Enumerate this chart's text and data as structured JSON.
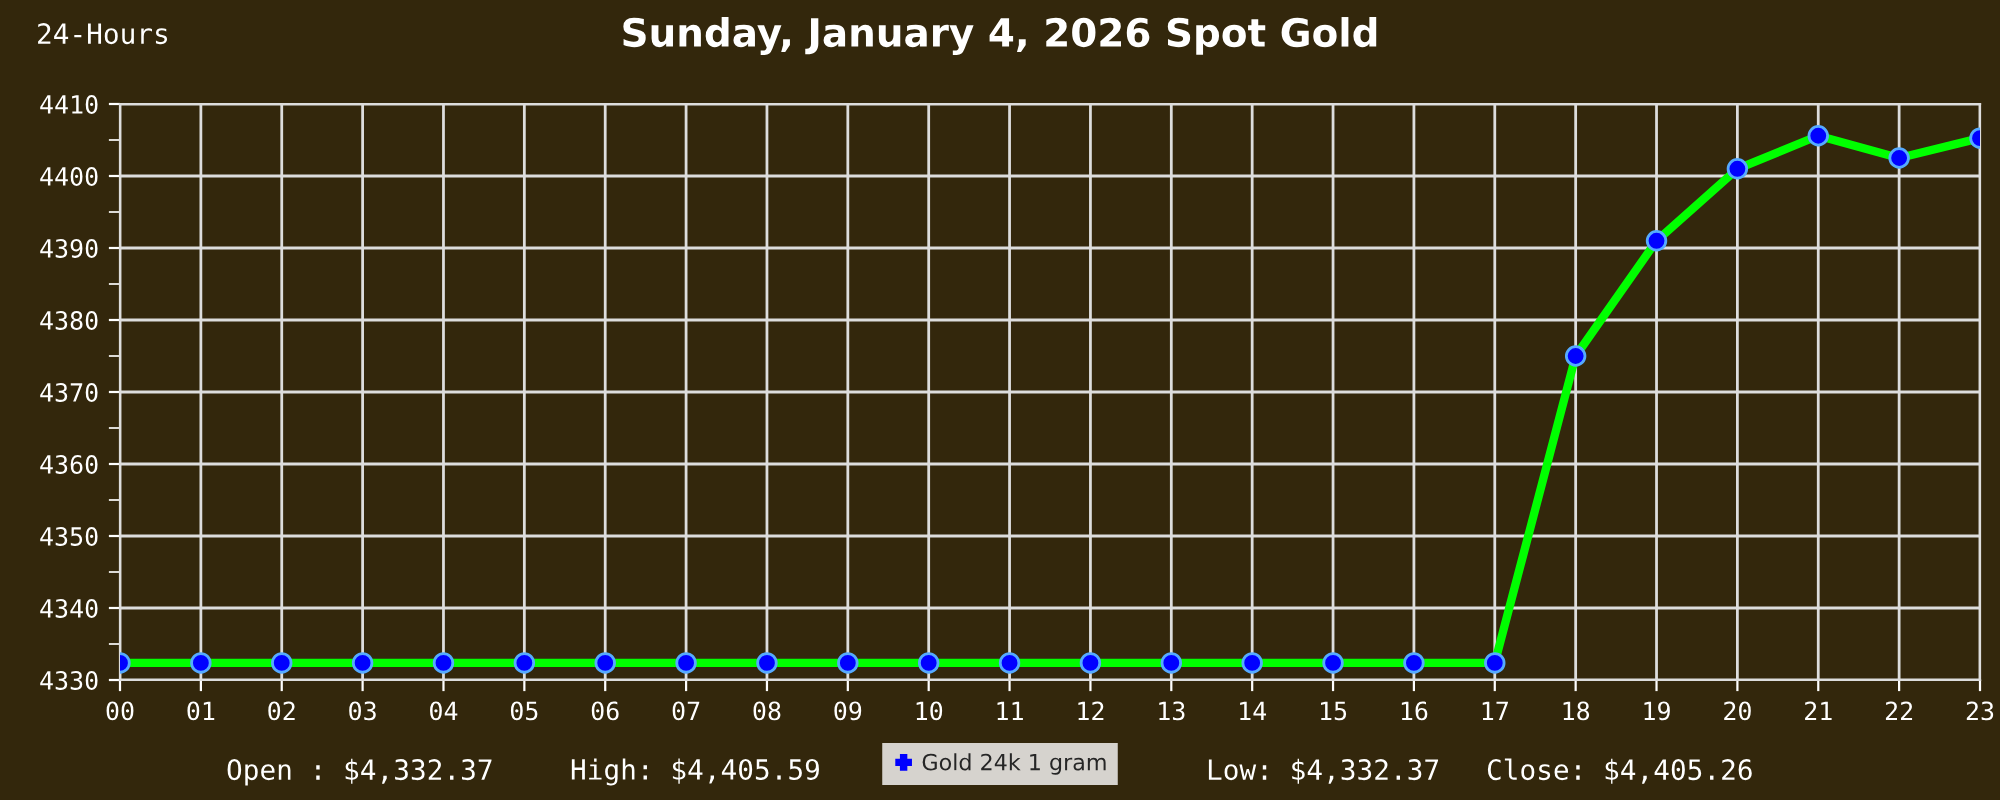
{
  "chart_data": {
    "type": "line",
    "title": "Sunday, January 4, 2026 Spot Gold",
    "subtitle": "24-Hours",
    "categories": [
      "00",
      "01",
      "02",
      "03",
      "04",
      "05",
      "06",
      "07",
      "08",
      "09",
      "10",
      "11",
      "12",
      "13",
      "14",
      "15",
      "16",
      "17",
      "18",
      "19",
      "20",
      "21",
      "22",
      "23"
    ],
    "series": [
      {
        "name": "Gold 24k 1 gram",
        "color": "#00ff00",
        "colors": [
          "#0000ff",
          "#0000ff",
          "#0000ff",
          "#0000ff",
          "#0000ff",
          "#0000ff",
          "#0000ff",
          "#0000ff",
          "#0000ff",
          "#0000ff",
          "#0000ff",
          "#0000ff",
          "#0000ff",
          "#0000ff",
          "#0000ff",
          "#0000ff",
          "#0000ff",
          "#0000ff",
          "#0000ff",
          "#0000ff",
          "#0000ff",
          "#0000ff",
          "#0000ff",
          "#0000ff"
        ],
        "values": [
          4332.37,
          4332.37,
          4332.37,
          4332.37,
          4332.37,
          4332.37,
          4332.37,
          4332.37,
          4332.37,
          4332.37,
          4332.37,
          4332.37,
          4332.37,
          4332.37,
          4332.37,
          4332.37,
          4332.37,
          4332.37,
          4375,
          4391,
          4401,
          4405.59,
          4402.5,
          4405.26
        ]
      }
    ],
    "ylim": [
      4330,
      4410
    ],
    "yticks": [
      4330,
      4340,
      4350,
      4360,
      4370,
      4380,
      4390,
      4400,
      4410
    ],
    "grid": true,
    "legend": "bottom",
    "marker": "circle",
    "line_style": "solid",
    "annotations": [
      "Open : $4,332.37",
      "High: $4,405.59",
      "Low: $4,332.37",
      "Close: $4,405.26"
    ]
  }
}
